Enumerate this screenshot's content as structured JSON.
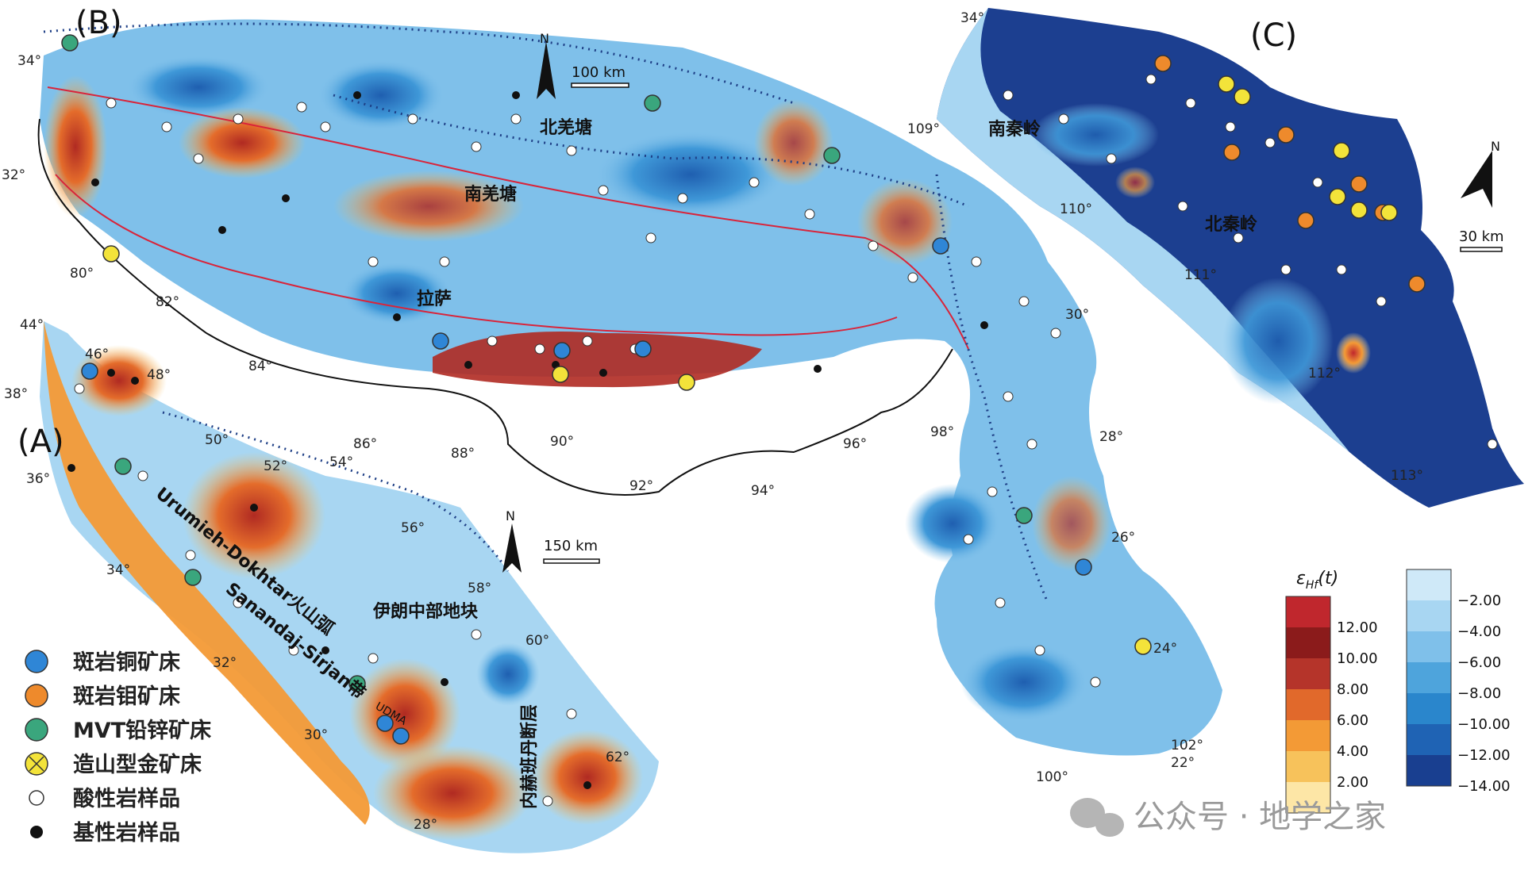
{
  "panels": {
    "a": "(A)",
    "b": "(B)",
    "c": "(C)"
  },
  "regions": {
    "north_qiangtang": "北羌塘",
    "south_qiangtang": "南羌塘",
    "lhasa": "拉萨",
    "south_qinling": "南秦岭",
    "north_qinling": "北秦岭",
    "central_iran": "伊朗中部地块",
    "urumieh": "Urumieh-Dokhtar火山弧",
    "sanandaj": "Sanandaj-Sirjan带",
    "udma": "UDMA",
    "nehbandan": "内赫班丹断层"
  },
  "scale_bars": {
    "b": "100 km",
    "a": "150 km",
    "c": "30 km"
  },
  "north_arrow": "N",
  "coords_b": [
    "34°",
    "32°",
    "80°",
    "82°",
    "84°",
    "86°",
    "88°",
    "90°",
    "92°",
    "94°",
    "96°",
    "98°",
    "30°",
    "28°",
    "26°",
    "24°",
    "22°",
    "100°",
    "102°"
  ],
  "coords_a": [
    "44°",
    "46°",
    "48°",
    "38°",
    "36°",
    "50°",
    "52°",
    "54°",
    "56°",
    "58°",
    "60°",
    "62°",
    "34°",
    "32°",
    "30°",
    "28°"
  ],
  "coords_c": [
    "34°",
    "109°",
    "110°",
    "111°",
    "112°",
    "113°"
  ],
  "legend": [
    {
      "symbol": "porphyry-cu-icon",
      "label": "斑岩铜矿床",
      "color": "#2f86d6"
    },
    {
      "symbol": "porphyry-mo-icon",
      "label": "斑岩钼矿床",
      "color": "#ee8a2c"
    },
    {
      "symbol": "mvt-icon",
      "label": "MVT铅锌矿床",
      "color": "#3aa67d"
    },
    {
      "symbol": "orogenic-au-icon",
      "label": "造山型金矿床",
      "color": "#f3e33a"
    },
    {
      "symbol": "felsic-sample-icon",
      "label": "酸性岩样品",
      "color": "#ffffff"
    },
    {
      "symbol": "mafic-sample-icon",
      "label": "基性岩样品",
      "color": "#111111"
    }
  ],
  "colorbar": {
    "title_main": "ε",
    "title_sub": "Hf",
    "title_tail": "(t)",
    "positive_ticks": [
      "12.00",
      "10.00",
      "8.00",
      "6.00",
      "4.00",
      "2.00"
    ],
    "negative_ticks": [
      "−2.00",
      "−4.00",
      "−6.00",
      "−8.00",
      "−10.00",
      "−12.00",
      "−14.00"
    ],
    "positive_colors": [
      "#c0272d",
      "#8b1b1b",
      "#b5342a",
      "#e1692b",
      "#f39a36",
      "#f7c25b",
      "#fde6a6"
    ],
    "negative_colors": [
      "#cfe9f8",
      "#a8d6f2",
      "#7fc0ea",
      "#4ea4dc",
      "#2a86cc",
      "#1f63b4",
      "#193f90"
    ]
  },
  "watermark": "公众号 · 地学之家"
}
